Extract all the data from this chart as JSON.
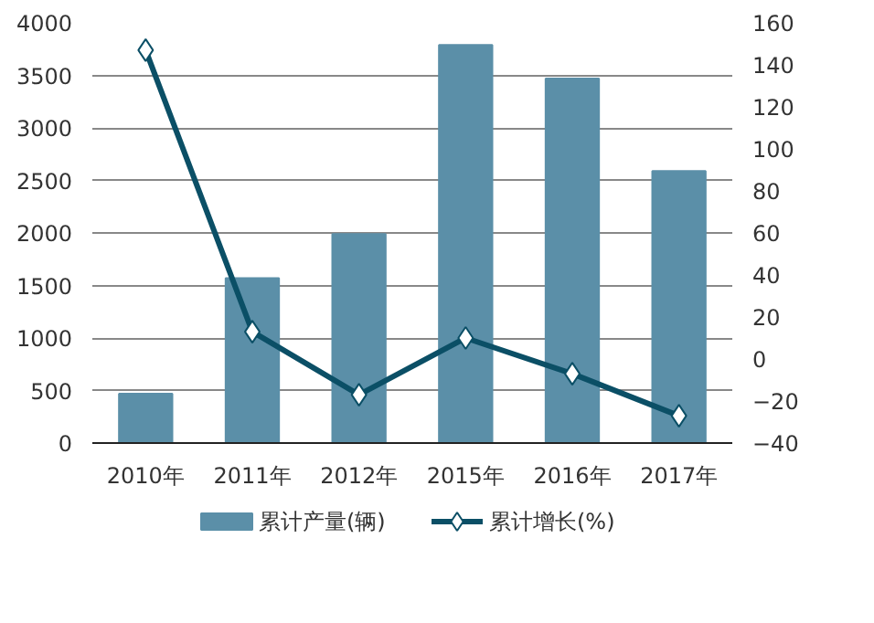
{
  "chart_data": {
    "type": "bar",
    "categories": [
      "2010年",
      "2011年",
      "2012年",
      "2015年",
      "2016年",
      "2017年"
    ],
    "series": [
      {
        "name": "累计产量(辆)",
        "color": "#5b8fa8",
        "values": [
          470,
          1570,
          1990,
          3790,
          3470,
          2590
        ]
      },
      {
        "name": "累计增长(%)",
        "type": "line",
        "axis": "y2",
        "color": "#0b4f66",
        "marker": "diamond",
        "values": [
          147,
          13,
          -17,
          10,
          -7,
          -27
        ]
      }
    ],
    "ylim": [
      0,
      4000
    ],
    "yticks": [
      0,
      500,
      1000,
      1500,
      2000,
      2500,
      3000,
      3500,
      4000
    ],
    "y2lim": [
      -40,
      160
    ],
    "y2ticks": [
      -40,
      -20,
      0,
      20,
      40,
      60,
      80,
      100,
      120,
      140,
      160
    ],
    "grid": "y",
    "legend": "bottom"
  }
}
